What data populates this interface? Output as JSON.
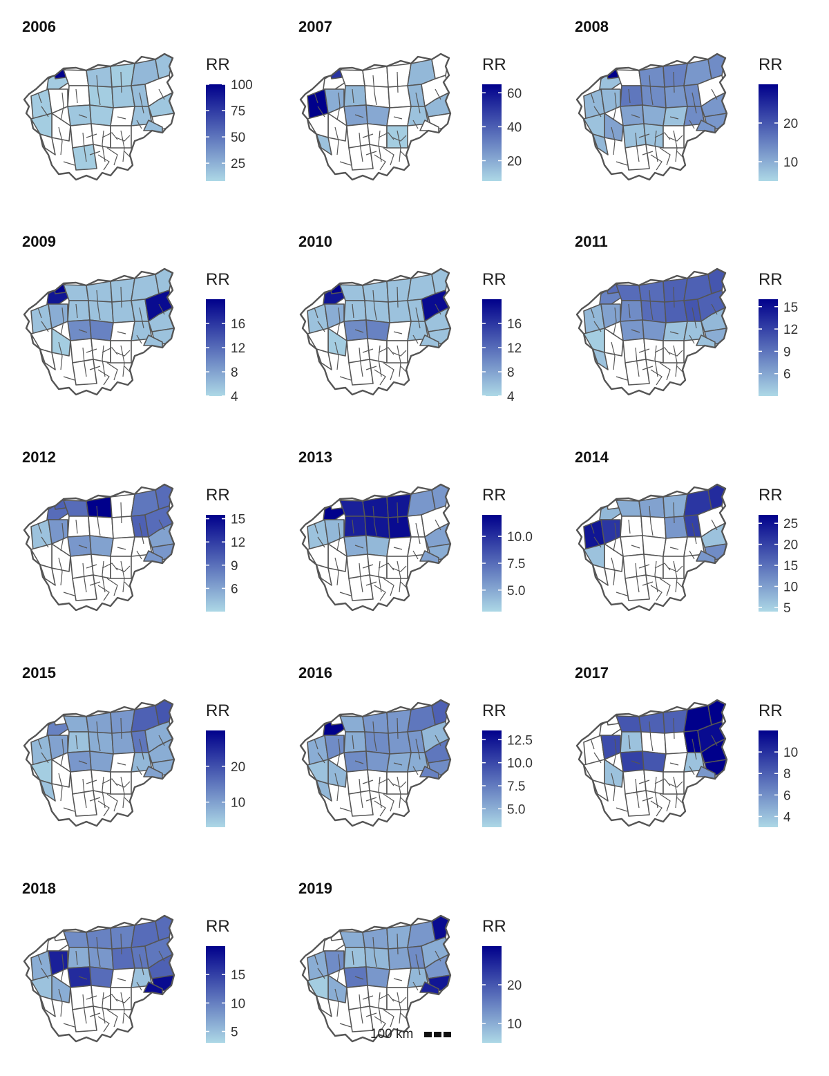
{
  "figure": {
    "legend_title": "RR",
    "colors": {
      "low": "#add8e6",
      "high": "#00008b",
      "border": "#555555",
      "empty": "#ffffff"
    },
    "scalebar": {
      "label": "100 km"
    },
    "panels": [
      {
        "year": "2006",
        "range": [
          8,
          100
        ],
        "ticks": [
          "25",
          "50",
          "75",
          "100"
        ],
        "tick_values": [
          25,
          50,
          75,
          100
        ],
        "regions": [
          0.06,
          1,
          0,
          0.1,
          0.05,
          0,
          0.05,
          0.08,
          0.15,
          0.1,
          0.12,
          0,
          0.06,
          0,
          0.08,
          0.06,
          0,
          0.1,
          0.08,
          0,
          0.12,
          0,
          0.05,
          0,
          0,
          0,
          0,
          0.05
        ]
      },
      {
        "year": "2007",
        "range": [
          8,
          65
        ],
        "ticks": [
          "20",
          "40",
          "60"
        ],
        "tick_values": [
          20,
          40,
          60
        ],
        "regions": [
          0,
          0.75,
          0,
          0,
          0,
          0.15,
          0,
          0,
          0.15,
          0,
          0.15,
          0,
          1,
          0.2,
          0.25,
          0.22,
          0,
          0.1,
          0.15,
          0,
          0,
          0,
          0,
          0.1,
          0,
          0,
          0.05,
          0
        ]
      },
      {
        "year": "2008",
        "range": [
          5,
          30
        ],
        "ticks": [
          "10",
          "20"
        ],
        "tick_values": [
          10,
          20
        ],
        "regions": [
          0.1,
          1,
          0,
          0.35,
          0.4,
          0.45,
          0.35,
          0.3,
          0.3,
          0.35,
          0.35,
          0,
          0.15,
          0.15,
          0.25,
          0.2,
          0.1,
          0.35,
          0.3,
          0.3,
          0.3,
          0.25,
          0.1,
          0.15,
          0.1,
          0.1,
          0,
          0
        ]
      },
      {
        "year": "2009",
        "range": [
          4,
          20
        ],
        "ticks": [
          "4",
          "8",
          "12",
          "16"
        ],
        "tick_values": [
          4,
          8,
          12,
          16
        ],
        "regions": [
          0.9,
          1,
          0.1,
          0.1,
          0.1,
          0.1,
          0.1,
          0.1,
          0.1,
          0.1,
          0.1,
          0.95,
          0.1,
          0.2,
          0.35,
          0.4,
          0,
          0.1,
          0.1,
          0.1,
          0.1,
          0.05,
          0,
          0,
          0,
          0,
          0,
          0
        ]
      },
      {
        "year": "2010",
        "range": [
          4,
          20
        ],
        "ticks": [
          "4",
          "8",
          "12",
          "16"
        ],
        "tick_values": [
          4,
          8,
          12,
          16
        ],
        "regions": [
          0.9,
          1,
          0.1,
          0.1,
          0.1,
          0.1,
          0.1,
          0.1,
          0.1,
          0.1,
          0.1,
          0.95,
          0.1,
          0.2,
          0.35,
          0.4,
          0,
          0.1,
          0.1,
          0.1,
          0.1,
          0.05,
          0,
          0,
          0,
          0,
          0,
          0
        ]
      },
      {
        "year": "2011",
        "range": [
          3,
          16
        ],
        "ticks": [
          "6",
          "9",
          "12",
          "15"
        ],
        "tick_values": [
          6,
          9,
          12,
          15
        ],
        "regions": [
          0.4,
          0.5,
          0.5,
          0.5,
          0.55,
          0.35,
          0.5,
          0.55,
          0.55,
          0.6,
          0.6,
          0.55,
          0.15,
          0.25,
          0.3,
          0.3,
          0.1,
          0.1,
          0.15,
          0.2,
          0.1,
          0,
          0.05,
          0.1,
          0,
          0,
          0,
          0
        ]
      },
      {
        "year": "2012",
        "range": [
          3,
          15.5
        ],
        "ticks": [
          "6",
          "9",
          "12",
          "15"
        ],
        "tick_values": [
          6,
          9,
          12,
          15
        ],
        "regions": [
          0.5,
          0.55,
          0.5,
          1,
          0,
          0,
          0,
          0,
          0.45,
          0.5,
          0.55,
          0.5,
          0.1,
          0.3,
          0.3,
          0.25,
          0,
          0,
          0.25,
          0.3,
          0.3,
          0,
          0,
          0,
          0,
          0,
          0,
          0
        ]
      },
      {
        "year": "2013",
        "range": [
          3,
          12
        ],
        "ticks": [
          "5.0",
          "7.5",
          "10.0"
        ],
        "tick_values": [
          5,
          7.5,
          10
        ],
        "regions": [
          1,
          0,
          0.85,
          0.9,
          0.9,
          0.85,
          0.9,
          0.95,
          0.3,
          0.3,
          0,
          0,
          0.1,
          0.15,
          0.2,
          0.15,
          0,
          0,
          0.25,
          0.2,
          0.25,
          0,
          0,
          0,
          0,
          0,
          0,
          0
        ]
      },
      {
        "year": "2014",
        "range": [
          4,
          27
        ],
        "ticks": [
          "5",
          "10",
          "15",
          "20",
          "25"
        ],
        "tick_values": [
          5,
          10,
          15,
          20,
          25
        ],
        "regions": [
          0.15,
          0,
          0.2,
          0.25,
          0.2,
          0,
          0,
          0.3,
          0.75,
          0.8,
          0.7,
          0,
          0.9,
          0.75,
          0,
          0,
          0,
          0,
          0.1,
          0.35,
          0.3,
          0,
          0.1,
          0,
          0,
          0,
          0,
          0
        ]
      },
      {
        "year": "2015",
        "range": [
          3,
          30
        ],
        "ticks": [
          "10",
          "20"
        ],
        "tick_values": [
          10,
          20
        ],
        "regions": [
          0.4,
          0,
          0.2,
          0.25,
          0.3,
          0.1,
          0.2,
          0.25,
          0.55,
          0.6,
          0.45,
          0.2,
          0.15,
          0.25,
          0.3,
          0.25,
          0,
          0.15,
          0.2,
          0.2,
          0.25,
          0,
          0.05,
          0.1,
          0,
          0,
          0,
          0
        ]
      },
      {
        "year": "2016",
        "range": [
          3,
          13.5
        ],
        "ticks": [
          "5.0",
          "7.5",
          "10.0",
          "12.5"
        ],
        "tick_values": [
          5,
          7.5,
          10,
          12.5
        ],
        "regions": [
          1,
          0,
          0.2,
          0.3,
          0.3,
          0.2,
          0.35,
          0.3,
          0.45,
          0.55,
          0.3,
          0.15,
          0.2,
          0.35,
          0.35,
          0.3,
          0.2,
          0.2,
          0.45,
          0.35,
          0.4,
          0.15,
          0.1,
          0.15,
          0,
          0,
          0,
          0
        ]
      },
      {
        "year": "2017",
        "range": [
          3,
          12
        ],
        "ticks": [
          "4",
          "6",
          "8",
          "10"
        ],
        "tick_values": [
          4,
          6,
          8,
          10
        ],
        "regions": [
          0,
          0,
          0.6,
          0.55,
          0.55,
          0.1,
          0,
          0,
          1,
          1,
          1,
          0.95,
          0,
          0.65,
          0.7,
          0.6,
          0,
          0.1,
          1,
          1,
          0.3,
          0.1,
          0,
          0,
          0,
          0,
          0,
          0
        ]
      },
      {
        "year": "2018",
        "range": [
          3,
          20
        ],
        "ticks": [
          "5",
          "10",
          "15"
        ],
        "tick_values": [
          5,
          10,
          15
        ],
        "regions": [
          0,
          0,
          0.35,
          0.4,
          0.4,
          0.2,
          0.3,
          0.5,
          0.5,
          0.5,
          0.45,
          0.45,
          0.2,
          0.85,
          0.8,
          0.5,
          0,
          0.1,
          0.55,
          0.95,
          0.95,
          0.2,
          0.1,
          0,
          0,
          0,
          0,
          0
        ]
      },
      {
        "year": "2019",
        "range": [
          5,
          30
        ],
        "ticks": [
          "10",
          "20"
        ],
        "tick_values": [
          10,
          20
        ],
        "regions": [
          0,
          0,
          0.2,
          0.25,
          0.2,
          0.1,
          0.15,
          0.25,
          0.3,
          0.95,
          0.35,
          0.2,
          0.2,
          0.35,
          0.45,
          0.3,
          0,
          0.15,
          0.3,
          0.9,
          0.85,
          0.2,
          0.05,
          0,
          0,
          0,
          0,
          0
        ]
      }
    ]
  }
}
